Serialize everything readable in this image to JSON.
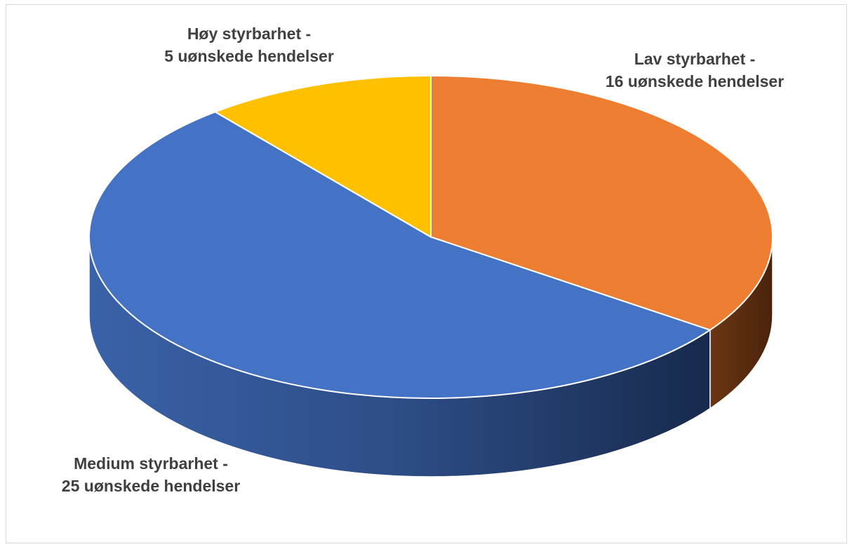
{
  "chart_data": {
    "type": "pie",
    "variant": "3d",
    "slices": [
      {
        "label_line1": "Lav styrbarhet -",
        "label_line2": "16 uønskede hendelser",
        "value": 16,
        "color": "#ed7d31",
        "side_color": "#5b2e12"
      },
      {
        "label_line1": "Medium styrbarhet -",
        "label_line2": "25 uønskede hendelser",
        "value": 25,
        "color": "#4472c4",
        "side_color": "#2a4682"
      },
      {
        "label_line1": "Høy styrbarhet -",
        "label_line2": "5 uønskede hendelser",
        "value": 5,
        "color": "#ffc000",
        "side_color": "#7f6000"
      }
    ]
  }
}
